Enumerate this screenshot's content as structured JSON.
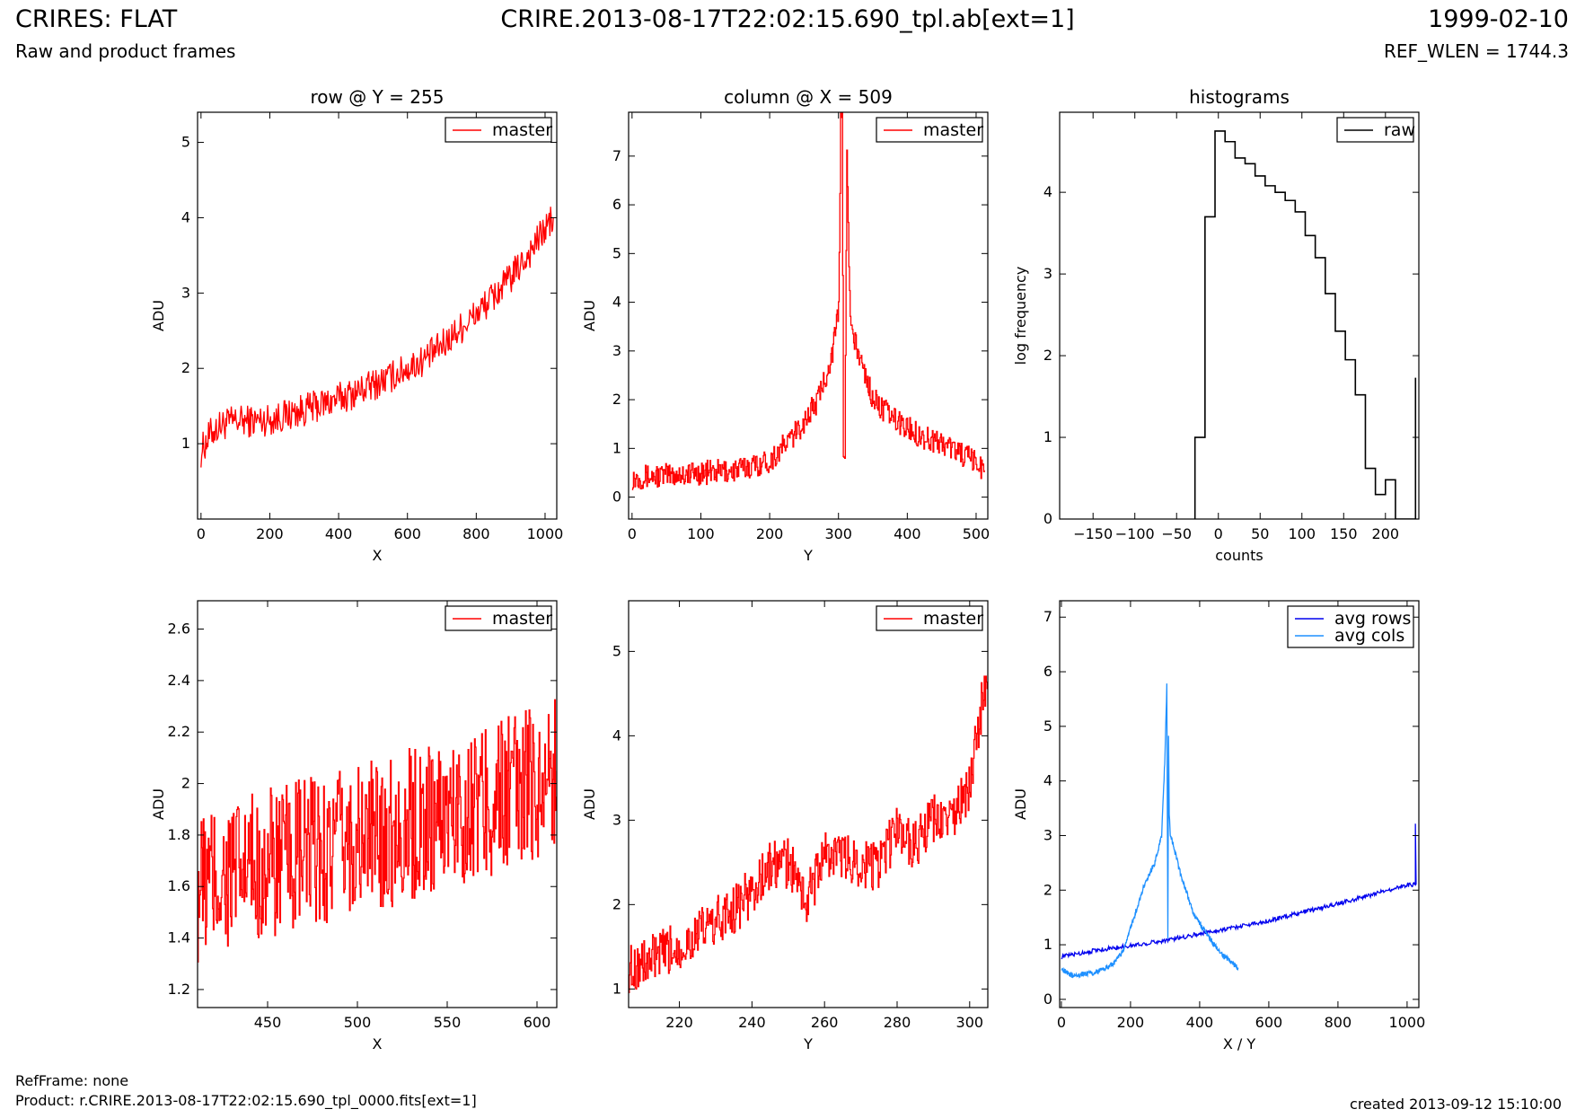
{
  "header": {
    "title": "CRIRES: FLAT",
    "subtitle": "Raw and product frames",
    "file": "CRIRE.2013-08-17T22:02:15.690_tpl.ab[ext=1]",
    "date": "1999-02-10",
    "ref_wlen": "REF_WLEN = 1744.3"
  },
  "footer": {
    "refframe": "RefFrame: none",
    "product": "Product: r.CRIRE.2013-08-17T22:02:15.690_tpl_0000.fits[ext=1]",
    "created": "created 2013-09-12 15:10:00"
  },
  "colors": {
    "master": "#ff0000",
    "raw": "#000000",
    "avg_rows": "#0000ee",
    "avg_cols": "#1e90ff"
  },
  "chart_data": [
    {
      "type": "line",
      "title": "row @ Y = 255",
      "xlabel": "X",
      "ylabel": "ADU",
      "xlim": [
        -10,
        1034
      ],
      "ylim": [
        0,
        5.4
      ],
      "xticks": [
        0,
        200,
        400,
        600,
        800,
        1000
      ],
      "yticks": [
        1,
        2,
        3,
        4,
        5
      ],
      "legend": "top-right",
      "series": [
        {
          "name": "master",
          "color": "#ff0000",
          "step": false,
          "x": [
            0,
            30,
            60,
            100,
            150,
            200,
            250,
            300,
            350,
            400,
            450,
            500,
            550,
            600,
            650,
            700,
            750,
            800,
            850,
            900,
            950,
            1000,
            1024
          ],
          "y": [
            0.9,
            1.15,
            1.25,
            1.3,
            1.3,
            1.32,
            1.38,
            1.45,
            1.52,
            1.6,
            1.68,
            1.78,
            1.88,
            2.0,
            2.12,
            2.3,
            2.52,
            2.72,
            2.95,
            3.2,
            3.5,
            3.85,
            4.0
          ],
          "noise": 0.22
        }
      ]
    },
    {
      "type": "line",
      "title": "column @ X = 509",
      "xlabel": "Y",
      "ylabel": "ADU",
      "xlim": [
        -5,
        517
      ],
      "ylim": [
        -0.45,
        7.9
      ],
      "xticks": [
        0,
        100,
        200,
        300,
        400,
        500
      ],
      "yticks": [
        0,
        1,
        2,
        3,
        4,
        5,
        6,
        7
      ],
      "legend": "top-right",
      "series": [
        {
          "name": "master",
          "color": "#ff0000",
          "step": true,
          "x": [
            0,
            50,
            100,
            150,
            200,
            240,
            270,
            290,
            300,
            303,
            305,
            307,
            309,
            312,
            316,
            320,
            330,
            350,
            380,
            420,
            460,
            500,
            512
          ],
          "y": [
            0.4,
            0.45,
            0.5,
            0.55,
            0.75,
            1.35,
            2.0,
            2.9,
            3.8,
            7.8,
            7.9,
            1.0,
            1.0,
            7.3,
            4.0,
            3.3,
            2.9,
            2.0,
            1.6,
            1.25,
            1.05,
            0.7,
            0.55
          ],
          "noise": 0.25
        }
      ]
    },
    {
      "type": "line",
      "title": "histograms",
      "xlabel": "counts",
      "ylabel": "log frequency",
      "xlim": [
        -190,
        240
      ],
      "ylim": [
        0,
        4.98
      ],
      "xticks": [
        -150,
        -100,
        -50,
        0,
        50,
        100,
        150,
        200
      ],
      "yticks": [
        0,
        1,
        2,
        3,
        4
      ],
      "legend": "top-right",
      "series": [
        {
          "name": "raw",
          "color": "#000000",
          "step": true,
          "x": [
            -28,
            -28,
            -16,
            -4,
            8,
            20,
            32,
            44,
            56,
            68,
            80,
            92,
            104,
            116,
            128,
            140,
            152,
            164,
            176,
            188,
            200,
            212,
            224,
            236
          ],
          "y": [
            0,
            1.0,
            3.7,
            4.75,
            4.62,
            4.42,
            4.35,
            4.2,
            4.08,
            4.0,
            3.9,
            3.76,
            3.47,
            3.2,
            2.76,
            2.3,
            1.95,
            1.52,
            0.62,
            0.3,
            0.48,
            0.0,
            0.0,
            1.73
          ]
        }
      ]
    },
    {
      "type": "line",
      "xlabel": "X",
      "ylabel": "ADU",
      "xlim": [
        411,
        611
      ],
      "ylim": [
        1.13,
        2.71
      ],
      "xticks": [
        450,
        500,
        550,
        600
      ],
      "yticks": [
        1.2,
        1.4,
        1.6,
        1.8,
        2.0,
        2.2,
        2.4,
        2.6
      ],
      "legend": "top-right",
      "series": [
        {
          "name": "master",
          "color": "#ff0000",
          "step": true,
          "x": [
            411,
            450,
            500,
            550,
            600,
            611
          ],
          "y": [
            1.6,
            1.68,
            1.78,
            1.88,
            2.0,
            2.05
          ],
          "noise": 0.3
        }
      ]
    },
    {
      "type": "line",
      "xlabel": "Y",
      "ylabel": "ADU",
      "xlim": [
        206,
        305
      ],
      "ylim": [
        0.78,
        5.6
      ],
      "xticks": [
        220,
        240,
        260,
        280,
        300
      ],
      "yticks": [
        1,
        2,
        3,
        4,
        5
      ],
      "legend": "top-right",
      "series": [
        {
          "name": "master",
          "color": "#ff0000",
          "step": true,
          "x": [
            206,
            210,
            215,
            220,
            225,
            230,
            235,
            240,
            245,
            250,
            255,
            260,
            265,
            270,
            275,
            280,
            285,
            290,
            295,
            300,
            303,
            305
          ],
          "y": [
            1.25,
            1.3,
            1.4,
            1.5,
            1.65,
            1.8,
            1.95,
            2.15,
            2.45,
            2.5,
            2.05,
            2.6,
            2.55,
            2.5,
            2.45,
            2.9,
            2.7,
            3.0,
            3.0,
            3.4,
            4.3,
            4.6
          ],
          "noise": 0.3
        }
      ]
    },
    {
      "type": "line",
      "xlabel": "X / Y",
      "ylabel": "ADU",
      "xlim": [
        -5,
        1034
      ],
      "ylim": [
        -0.15,
        7.3
      ],
      "xticks": [
        0,
        200,
        400,
        600,
        800,
        1000
      ],
      "yticks": [
        0,
        1,
        2,
        3,
        4,
        5,
        6,
        7
      ],
      "legend": "top-right",
      "series": [
        {
          "name": "avg rows",
          "color": "#0000ee",
          "step": false,
          "x": [
            0,
            100,
            200,
            300,
            400,
            500,
            600,
            700,
            800,
            900,
            1000,
            1024,
            1024,
            1026
          ],
          "y": [
            0.78,
            0.9,
            0.98,
            1.08,
            1.2,
            1.32,
            1.44,
            1.6,
            1.75,
            1.92,
            2.1,
            2.1,
            3.2,
            2.1
          ],
          "noise": 0.04
        },
        {
          "name": "avg cols",
          "color": "#1e90ff",
          "step": false,
          "x": [
            0,
            20,
            50,
            100,
            150,
            180,
            200,
            240,
            270,
            290,
            300,
            305,
            308,
            310,
            312,
            315,
            325,
            340,
            360,
            380,
            420,
            460,
            500,
            512
          ],
          "y": [
            0.58,
            0.45,
            0.45,
            0.5,
            0.65,
            0.9,
            1.3,
            2.1,
            2.5,
            3.0,
            4.5,
            5.75,
            1.1,
            4.8,
            3.4,
            3.0,
            2.8,
            2.4,
            2.0,
            1.6,
            1.2,
            0.85,
            0.62,
            0.58
          ],
          "noise": 0.05
        }
      ]
    }
  ]
}
